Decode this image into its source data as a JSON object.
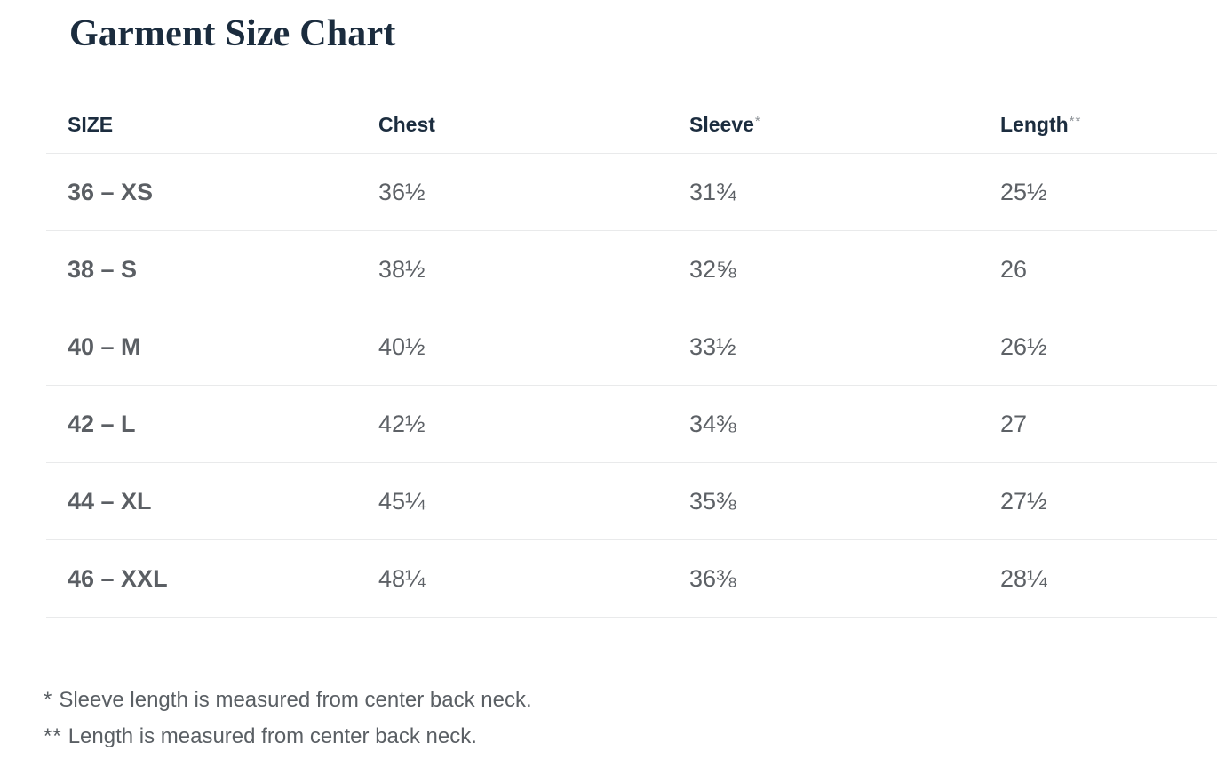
{
  "title": "Garment Size Chart",
  "table": {
    "columns": [
      {
        "label": "SIZE",
        "asterisk": ""
      },
      {
        "label": "Chest",
        "asterisk": ""
      },
      {
        "label": "Sleeve",
        "asterisk": "*"
      },
      {
        "label": "Length",
        "asterisk": "**"
      }
    ],
    "rows": [
      {
        "size": "36 – XS",
        "chest": "36½",
        "sleeve": "31¾",
        "length": "25½"
      },
      {
        "size": "38 – S",
        "chest": "38½",
        "sleeve": "32⅝",
        "length": "26"
      },
      {
        "size": "40 – M",
        "chest": "40½",
        "sleeve": "33½",
        "length": "26½"
      },
      {
        "size": "42 – L",
        "chest": "42½",
        "sleeve": "34⅜",
        "length": "27"
      },
      {
        "size": "44 – XL",
        "chest": "45¼",
        "sleeve": "35⅜",
        "length": "27½"
      },
      {
        "size": "46 – XXL",
        "chest": "48¼",
        "sleeve": "36⅜",
        "length": "28¼"
      }
    ]
  },
  "footnotes": [
    {
      "marker": "*",
      "text": "Sleeve length is measured from center back neck."
    },
    {
      "marker": "**",
      "text": "Length is measured from center back neck."
    }
  ],
  "colors": {
    "heading_navy": "#1b2c3e",
    "body_gray": "#5d6166",
    "divider_gray": "#e9eaeb",
    "asterisk_gray": "#8e9398",
    "background": "#ffffff"
  }
}
